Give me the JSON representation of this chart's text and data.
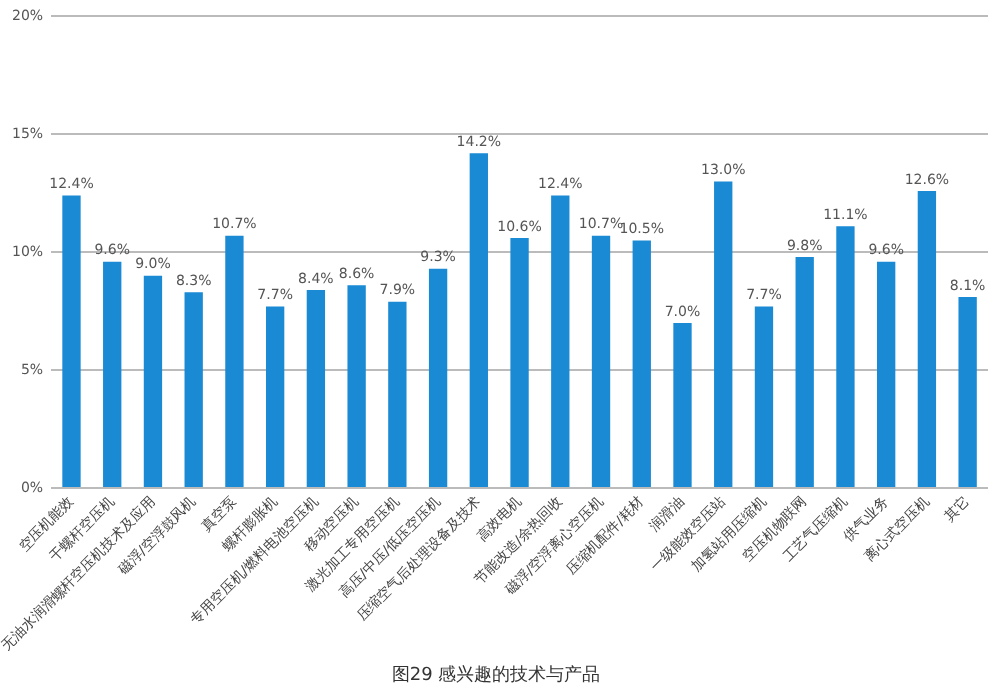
{
  "chart_data": {
    "type": "bar",
    "title": "图29 感兴趣的技术与产品",
    "categories": [
      "空压机能效",
      "干螺杆空压机",
      "无油水润滑螺杆空压机技术及应用",
      "磁浮/空浮鼓风机",
      "真空泵",
      "螺杆膨胀机",
      "专用空压机/燃料电池空压机",
      "移动空压机",
      "激光加工专用空压机",
      "高压/中压/低压空压机",
      "压缩空气后处理设备及技术",
      "高效电机",
      "节能改造/余热回收",
      "磁浮/空浮离心空压机",
      "压缩机配件/耗材",
      "润滑油",
      "一级能效空压站",
      "加氢站用压缩机",
      "空压机物联网",
      "工艺气压缩机",
      "供气业务",
      "离心式空压机",
      "其它"
    ],
    "values": [
      12.4,
      9.6,
      9.0,
      8.3,
      10.7,
      7.7,
      8.4,
      8.6,
      7.9,
      9.3,
      14.2,
      10.6,
      12.4,
      10.7,
      10.5,
      7.0,
      13.0,
      7.7,
      9.8,
      11.1,
      9.6,
      12.6,
      8.1
    ],
    "value_labels": [
      "12.4%",
      "9.6%",
      "9.0%",
      "8.3%",
      "10.7%",
      "7.7%",
      "8.4%",
      "8.6%",
      "7.9%",
      "9.3%",
      "14.2%",
      "10.6%",
      "12.4%",
      "10.7%",
      "10.5%",
      "7.0%",
      "13.0%",
      "7.7%",
      "9.8%",
      "11.1%",
      "9.6%",
      "12.6%",
      "8.1%"
    ],
    "color": "#1a8ad4",
    "ylim": [
      0,
      20
    ],
    "yticks": [
      {
        "value": 0,
        "label": "0%"
      },
      {
        "value": 5,
        "label": "5%"
      },
      {
        "value": 10,
        "label": "10%"
      },
      {
        "value": 15,
        "label": "15%"
      },
      {
        "value": 20,
        "label": "20%"
      }
    ],
    "grid": "y",
    "legend": false
  }
}
